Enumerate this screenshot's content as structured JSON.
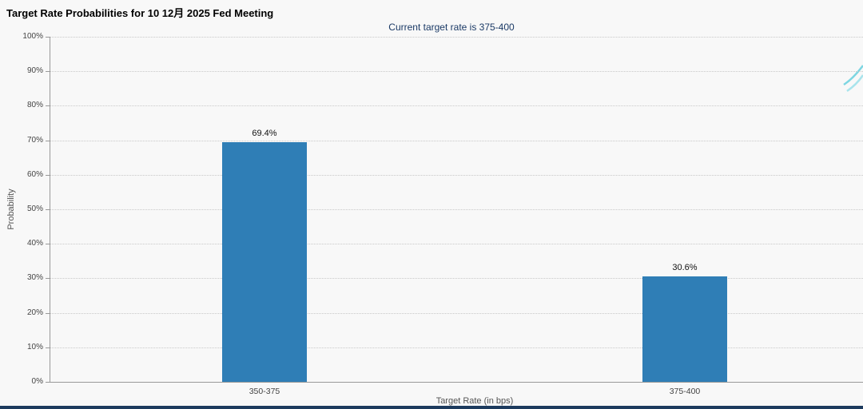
{
  "chart_data": {
    "type": "bar",
    "title": "Target Rate Probabilities for 10 12月 2025 Fed Meeting",
    "subtitle": "Current target rate is 375-400",
    "categories": [
      "350-375",
      "375-400"
    ],
    "values": [
      69.4,
      30.6
    ],
    "value_labels": [
      "69.4%",
      "30.6%"
    ],
    "xlabel": "Target Rate (in bps)",
    "ylabel": "Probability",
    "ylim": [
      0,
      100
    ],
    "ytick_step": 10,
    "ytick_labels": [
      "0%",
      "10%",
      "20%",
      "30%",
      "40%",
      "50%",
      "60%",
      "70%",
      "80%",
      "90%",
      "100%"
    ],
    "grid": "dotted-horizontal",
    "legend": "none",
    "bar_color": "#2f7eb6",
    "subtitle_color": "#1b3a66",
    "background_color": "#f8f8f8"
  },
  "decor": {
    "logo_color_primary": "#7dd6e2",
    "logo_color_secondary": "#a9e4ec",
    "bottom_strip_color": "#1d3b5e"
  }
}
